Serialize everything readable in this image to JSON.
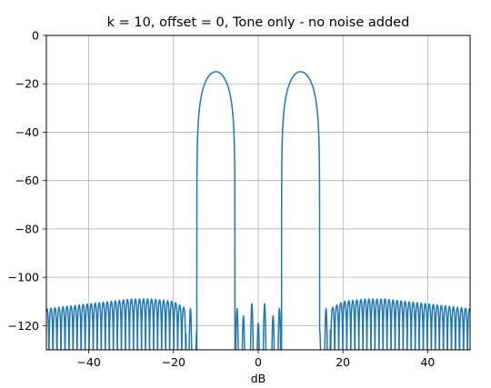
{
  "chart_data": {
    "type": "line",
    "title": "k = 10, offset = 0, Tone only - no noise added",
    "xlabel": "dB",
    "ylabel": "",
    "xlim": [
      -50,
      50
    ],
    "ylim": [
      -130,
      0
    ],
    "x_ticks": [
      -40,
      -20,
      0,
      20,
      40
    ],
    "y_ticks": [
      0,
      -20,
      -40,
      -60,
      -80,
      -100,
      -120
    ],
    "grid": true,
    "line_color": "#1f77b4",
    "series": [
      {
        "description": "two symmetric spectral peaks with low ripple sidelobes",
        "peaks": [
          {
            "center": -10,
            "peak_db": -15,
            "main_lobe_edges": [
              -14.5,
              -5.5
            ]
          },
          {
            "center": 10,
            "peak_db": -15,
            "main_lobe_edges": [
              5.5,
              14.5
            ]
          }
        ],
        "sidelobe_envelope": [
          [
            -50,
            -113
          ],
          [
            -40,
            -111
          ],
          [
            -30,
            -109
          ],
          [
            -25,
            -109
          ],
          [
            -20,
            -110
          ],
          [
            -17,
            -113
          ]
        ],
        "near_lobes": [
          {
            "x": -16,
            "y": -113
          },
          {
            "x": -14.5,
            "y": -122
          },
          {
            "x": -6,
            "y": -109
          },
          {
            "x": -5,
            "y": -113
          },
          {
            "x": -3.5,
            "y": -116
          },
          {
            "x": -1.5,
            "y": -111
          },
          {
            "x": 0,
            "y": -119
          }
        ],
        "floor_db": -130
      }
    ]
  }
}
